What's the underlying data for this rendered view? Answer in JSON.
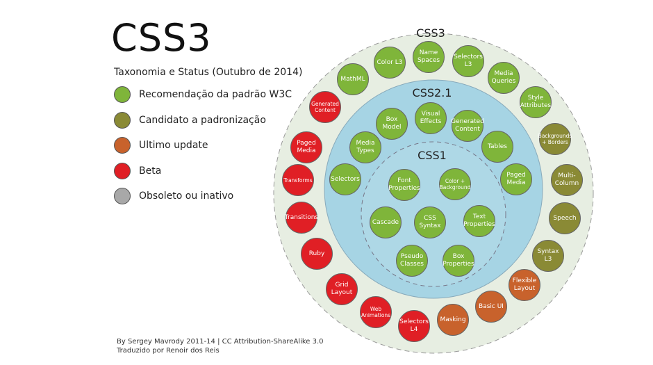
{
  "header": {
    "title": "CSS3",
    "subtitle": "Taxonomia e Status (Outubro de 2014)"
  },
  "legend": [
    {
      "label": "Recomendação da padrão W3C",
      "color": "#7fb53a"
    },
    {
      "label": "Candidato a padronização",
      "color": "#8a8a35"
    },
    {
      "label": "Ultimo update",
      "color": "#c8622c"
    },
    {
      "label": "Beta",
      "color": "#e01f25"
    },
    {
      "label": "Obsoleto ou inativo",
      "color": "#a8a8a8"
    }
  ],
  "footer": {
    "line1": "By Sergey Mavrody  2011-14 | CC Attribution-ShareAlike 3.0",
    "line2": "Traduzido por Renoir dos Reis"
  },
  "rings": {
    "css3": "CSS3",
    "css21": "CSS2.1",
    "css1": "CSS1"
  },
  "colors": {
    "outer_fill": "#e7eee2",
    "middle_fill": "#a6d4e4",
    "inner_fill": "#aed8e6"
  },
  "modules": [
    {
      "label": "Name Spaces",
      "status": "rec"
    },
    {
      "label": "Selectors L3",
      "status": "rec"
    },
    {
      "label": "Media Queries",
      "status": "rec"
    },
    {
      "label": "Style Attributes",
      "status": "rec"
    },
    {
      "label": "Backgrounds + Borders",
      "status": "cand",
      "small": true
    },
    {
      "label": "Multi-Column",
      "status": "cand"
    },
    {
      "label": "Speech",
      "status": "cand"
    },
    {
      "label": "Syntax L3",
      "status": "cand"
    },
    {
      "label": "Flexible Layout",
      "status": "update"
    },
    {
      "label": "Basic UI",
      "status": "update"
    },
    {
      "label": "Masking",
      "status": "update"
    },
    {
      "label": "Selectors L4",
      "status": "beta"
    },
    {
      "label": "Web Animations",
      "status": "beta",
      "small": true
    },
    {
      "label": "Grid Layout",
      "status": "beta"
    },
    {
      "label": "Ruby",
      "status": "beta"
    },
    {
      "label": "Transitions",
      "status": "beta"
    },
    {
      "label": "Transforms",
      "status": "beta",
      "small": true
    },
    {
      "label": "Paged Media",
      "status": "beta"
    },
    {
      "label": "Generated Content",
      "status": "beta",
      "small": true
    },
    {
      "label": "MathML",
      "status": "rec"
    },
    {
      "label": "Color L3",
      "status": "rec"
    },
    {
      "label": "Box Model",
      "status": "rec"
    },
    {
      "label": "Visual Effects",
      "status": "rec"
    },
    {
      "label": "Generated Content",
      "status": "rec"
    },
    {
      "label": "Tables",
      "status": "rec"
    },
    {
      "label": "Paged Media",
      "status": "rec"
    },
    {
      "label": "Media Types",
      "status": "rec"
    },
    {
      "label": "Selectors",
      "status": "rec"
    },
    {
      "label": "Font Properties",
      "status": "rec"
    },
    {
      "label": "Color + Background",
      "status": "rec",
      "small": true
    },
    {
      "label": "Cascade",
      "status": "rec"
    },
    {
      "label": "CSS Syntax",
      "status": "rec"
    },
    {
      "label": "Text Properties",
      "status": "rec"
    },
    {
      "label": "Pseudo Classes",
      "status": "rec"
    },
    {
      "label": "Box Properties",
      "status": "rec"
    }
  ]
}
